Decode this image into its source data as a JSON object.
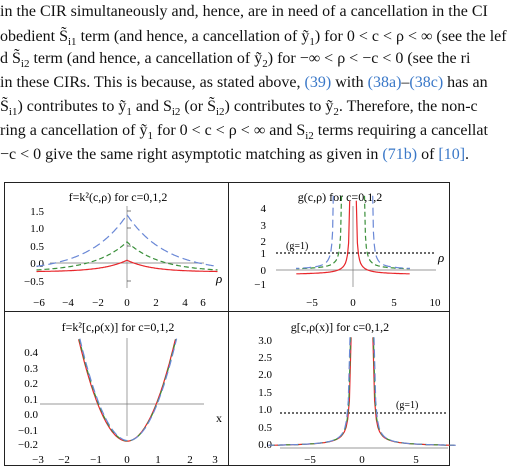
{
  "text": {
    "lines": [
      [
        {
          "t": " in the CIR simultaneously and, hence, are in need of a cancellation in the CI"
        }
      ],
      [
        {
          "t": "obedient S̃"
        },
        {
          "t": "i1",
          "sub": true
        },
        {
          "t": " term (and hence, a cancellation of ỹ"
        },
        {
          "t": "1",
          "sub": true
        },
        {
          "t": ") for 0 < c < ρ < ∞ (see the lef"
        }
      ],
      [
        {
          "t": "d S̃"
        },
        {
          "t": "i2",
          "sub": true
        },
        {
          "t": " term (and hence, a cancellation of ỹ"
        },
        {
          "t": "2",
          "sub": true
        },
        {
          "t": ") for −∞ < ρ < −c < 0 (see the ri"
        }
      ],
      [
        {
          "t": " in these CIRs. This is because, as stated above, "
        },
        {
          "t": "(39)",
          "ref": true
        },
        {
          "t": " with "
        },
        {
          "t": "(38a)",
          "ref": true
        },
        {
          "t": "–"
        },
        {
          "t": "(38c)",
          "ref": true
        },
        {
          "t": " has an"
        }
      ],
      [
        {
          "t": "S̃"
        },
        {
          "t": "i1",
          "sub": true
        },
        {
          "t": ") contributes to ỹ"
        },
        {
          "t": "1",
          "sub": true
        },
        {
          "t": " and S"
        },
        {
          "t": "i2",
          "sub": true
        },
        {
          "t": " (or S̃"
        },
        {
          "t": "i2",
          "sub": true
        },
        {
          "t": ") contributes to ỹ"
        },
        {
          "t": "2",
          "sub": true
        },
        {
          "t": ". Therefore, the non-c"
        }
      ],
      [
        {
          "t": "ring a cancellation of ỹ"
        },
        {
          "t": "1",
          "sub": true
        },
        {
          "t": " for 0 < c < ρ < ∞ and S"
        },
        {
          "t": "i2",
          "sub": true
        },
        {
          "t": " terms requiring a cancellat"
        }
      ],
      [
        {
          "t": "−c < 0 give the same right asymptotic matching as given in "
        },
        {
          "t": "(71b)",
          "ref": true
        },
        {
          "t": " of "
        },
        {
          "t": "[10]",
          "ref": true
        },
        {
          "t": "."
        }
      ]
    ]
  },
  "figure": {
    "series_colors": [
      "#e8262b",
      "#3a8f3a",
      "#6a88d6"
    ],
    "threshold_label": "(g=1)",
    "panels": [
      {
        "title": "f=k²(c,ρ)  for c=0,1,2",
        "xaxis_label": "ρ",
        "xticks": [
          "−6",
          "−4",
          "−2",
          "0",
          "2",
          "4",
          "6"
        ],
        "yticks": [
          "1.5",
          "1.0",
          "0.5",
          "0.0",
          "−0.5"
        ]
      },
      {
        "title": "g(c,ρ) for c=0,1,2",
        "xaxis_label": "ρ",
        "xticks": [
          "−5",
          "0",
          "5",
          "10"
        ],
        "yticks": [
          "4",
          "3",
          "2",
          "1",
          "0",
          "−1"
        ]
      },
      {
        "title": "f=k²[c,ρ(x)] for c=0,1,2",
        "xaxis_label": "x",
        "xticks": [
          "−3",
          "−2",
          "−1",
          "0",
          "1",
          "2",
          "3"
        ],
        "yticks": [
          "0.4",
          "0.3",
          "0.2",
          "0.1",
          "0.0",
          "−0.1",
          "−0.2"
        ]
      },
      {
        "title": "g[c,ρ(x)] for c=0,1,2",
        "xaxis_label": "",
        "xticks": [
          "−5",
          "0",
          "5"
        ],
        "yticks": [
          "3.0",
          "2.5",
          "2.0",
          "1.5",
          "1.0",
          "0.5",
          "0.0"
        ]
      }
    ]
  }
}
